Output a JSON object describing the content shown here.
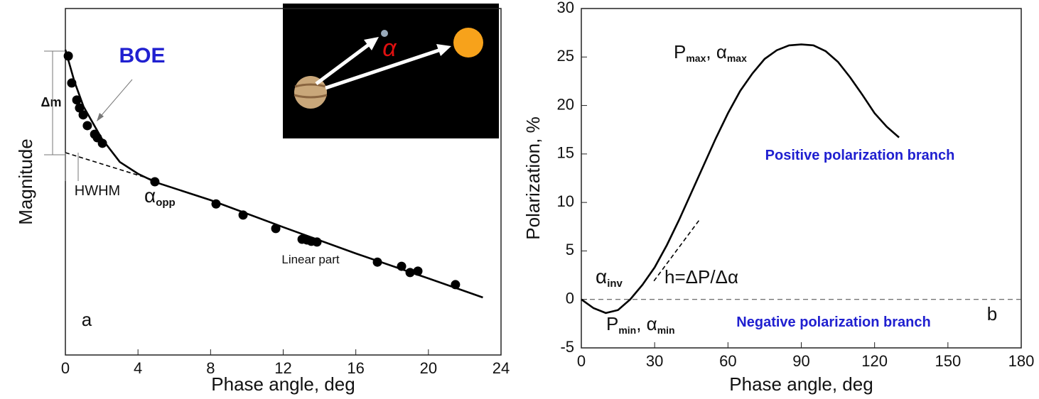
{
  "chart_data": [
    {
      "type": "scatter",
      "xlabel": "Phase angle, deg",
      "ylabel": "Magnitude",
      "xlim": [
        0,
        24
      ],
      "xticks": [
        0,
        4,
        8,
        12,
        16,
        20,
        24
      ],
      "ylim": [
        10,
        0
      ],
      "series": [
        {
          "type": "scatter",
          "color": "#000000",
          "x": [
            0.16,
            0.35,
            0.63,
            0.78,
            0.98,
            1.21,
            1.61,
            1.76,
            2.04,
            4.93,
            8.3,
            9.79,
            11.59,
            13.04,
            13.31,
            13.55,
            13.86,
            17.19,
            18.52,
            18.99,
            19.42,
            21.49
          ],
          "values": [
            1.37,
            2.15,
            2.64,
            2.87,
            3.07,
            3.38,
            3.63,
            3.73,
            3.89,
            5.0,
            5.64,
            5.96,
            6.35,
            6.66,
            6.68,
            6.72,
            6.74,
            7.32,
            7.44,
            7.62,
            7.58,
            7.97
          ]
        },
        {
          "type": "line",
          "color": "#000000",
          "x": [
            0,
            0.5,
            1,
            2,
            3,
            4,
            5,
            8,
            12,
            16,
            20,
            23
          ],
          "values": [
            1.19,
            2.11,
            2.83,
            3.75,
            4.43,
            4.77,
            5.02,
            5.53,
            6.31,
            7.07,
            7.79,
            8.34
          ]
        },
        {
          "type": "line",
          "dashed": true,
          "color": "#000000",
          "x": [
            0,
            4.8
          ],
          "values": [
            4.16,
            4.94
          ]
        }
      ],
      "annotations": [
        {
          "parts": [
            {
              "text": "BOE"
            }
          ]
        },
        {
          "parts": [
            {
              "text": "Δm"
            }
          ]
        },
        {
          "parts": [
            {
              "text": "HWHM"
            }
          ]
        },
        {
          "parts": [
            {
              "text": "α",
              "sub": "opp"
            }
          ]
        },
        {
          "parts": [
            {
              "text": "Linear part"
            }
          ]
        },
        {
          "parts": [
            {
              "text": "a"
            }
          ]
        },
        {
          "parts": [
            {
              "text": "α"
            }
          ]
        }
      ]
    },
    {
      "type": "line",
      "xlabel": "Phase angle, deg",
      "ylabel": "Polarization, %",
      "xlim": [
        0,
        180
      ],
      "xticks": [
        0,
        30,
        60,
        90,
        120,
        150,
        180
      ],
      "ylim": [
        -5,
        30
      ],
      "yticks": [
        -5,
        0,
        5,
        10,
        15,
        20,
        25,
        30
      ],
      "reference_line": 0,
      "series": [
        {
          "type": "line",
          "color": "#000000",
          "x": [
            0,
            5,
            10,
            15,
            20,
            25,
            30,
            35,
            40,
            45,
            50,
            55,
            60,
            65,
            70,
            75,
            80,
            85,
            90,
            95,
            100,
            105,
            110,
            115,
            120,
            125,
            130
          ],
          "values": [
            0,
            -0.9,
            -1.4,
            -1.1,
            0,
            1.5,
            3.3,
            5.6,
            8.2,
            11,
            13.8,
            16.6,
            19.2,
            21.5,
            23.3,
            24.8,
            25.7,
            26.2,
            26.3,
            26.2,
            25.6,
            24.5,
            22.9,
            21.1,
            19.2,
            17.8,
            16.7
          ]
        },
        {
          "type": "line",
          "dashed": true,
          "color": "#000000",
          "x": [
            29.7,
            48.6
          ],
          "values": [
            1.9,
            8.3
          ]
        }
      ],
      "annotations": [
        {
          "parts": [
            {
              "text": "P",
              "sub": "max"
            },
            {
              "text": ", α",
              "sub": "max"
            }
          ]
        },
        {
          "parts": [
            {
              "text": "Positive polarization branch"
            }
          ]
        },
        {
          "parts": [
            {
              "text": "α",
              "sub": "inv"
            }
          ]
        },
        {
          "parts": [
            {
              "text": "h=ΔP/Δα"
            }
          ]
        },
        {
          "parts": [
            {
              "text": "P",
              "sub": "min"
            },
            {
              "text": ", α",
              "sub": "min"
            }
          ]
        },
        {
          "parts": [
            {
              "text": "Negative polarization branch"
            }
          ]
        },
        {
          "parts": [
            {
              "text": "b"
            }
          ]
        }
      ]
    }
  ]
}
